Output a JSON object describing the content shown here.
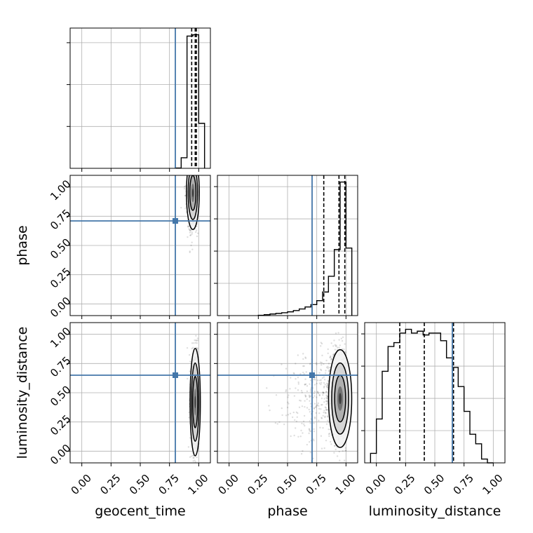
{
  "chart_data": {
    "type": "corner",
    "parameters": [
      "geocent_time",
      "phase",
      "luminosity_distance"
    ],
    "axis_range": [
      -0.1,
      1.1
    ],
    "tick_labels": [
      "0.00",
      "0.25",
      "0.50",
      "0.75",
      "1.00"
    ],
    "tick_values": [
      0,
      0.25,
      0.5,
      0.75,
      1.0
    ],
    "grid": true,
    "truth_color": "#4477aa",
    "truths": {
      "geocent_time": 0.8,
      "phase": 0.71,
      "luminosity_distance": 0.65
    },
    "histograms": {
      "geocent_time": {
        "bin_edges": [
          0.8,
          0.85,
          0.9,
          0.95,
          1.0,
          1.05
        ],
        "counts": [
          2,
          80,
          1000,
          1010,
          340
        ],
        "quantiles": [
          0.94,
          0.97,
          0.98
        ]
      },
      "phase": {
        "bin_edges": [
          0.25,
          0.3,
          0.35,
          0.4,
          0.45,
          0.5,
          0.55,
          0.6,
          0.65,
          0.7,
          0.75,
          0.8,
          0.85,
          0.9,
          0.95,
          1.0,
          1.05
        ],
        "counts": [
          2,
          6,
          10,
          14,
          18,
          24,
          32,
          42,
          55,
          70,
          95,
          150,
          250,
          420,
          850,
          430
        ],
        "quantiles": [
          0.81,
          0.94,
          0.99
        ]
      },
      "luminosity_distance": {
        "bin_edges": [
          -0.05,
          0.0,
          0.05,
          0.1,
          0.15,
          0.2,
          0.25,
          0.3,
          0.35,
          0.4,
          0.45,
          0.5,
          0.55,
          0.6,
          0.65,
          0.7,
          0.75,
          0.8,
          0.85,
          0.9,
          0.95,
          1.0
        ],
        "counts": [
          5,
          23,
          48,
          61,
          63,
          68,
          70,
          68,
          69,
          67,
          68,
          68,
          64,
          55,
          50,
          40,
          27,
          15,
          10,
          2,
          0
        ],
        "quantiles": [
          0.2,
          0.41,
          0.66
        ]
      }
    },
    "joint": [
      {
        "x": "geocent_time",
        "y": "phase",
        "center": [
          0.95,
          0.95
        ],
        "spread": [
          0.025,
          0.15
        ]
      },
      {
        "x": "geocent_time",
        "y": "luminosity_distance",
        "center": [
          0.97,
          0.42
        ],
        "spread": [
          0.02,
          0.22
        ]
      },
      {
        "x": "phase",
        "y": "luminosity_distance",
        "center": [
          0.95,
          0.45
        ],
        "spread": [
          0.05,
          0.2
        ]
      }
    ]
  }
}
